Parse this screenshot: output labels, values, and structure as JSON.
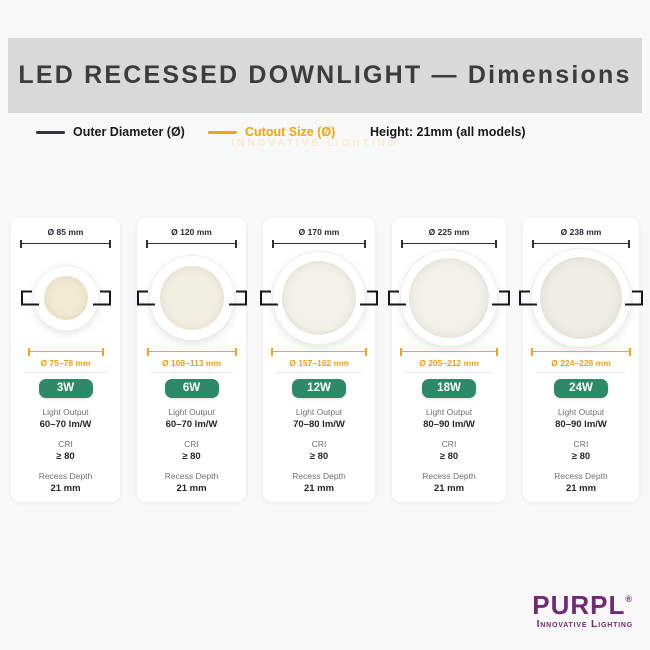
{
  "header": {
    "title": "LED RECESSED DOWNLIGHT — Dimensions"
  },
  "legend": {
    "outer_label": "Outer Diameter (Ø)",
    "cutout_label": "Cutout Size (Ø)",
    "height_note": "Height: 21mm (all models)"
  },
  "watermark": "INNOVATIVE LIGHTING",
  "spec_labels": {
    "light_output": "Light Output",
    "cri": "CRI",
    "recess_depth": "Recess Depth"
  },
  "products": [
    {
      "wattage": "3W",
      "outer_diameter": "Ø 85 mm",
      "cutout_size": "Ø 75–78 mm",
      "light_output": "60–70 lm/W",
      "cri": "≥ 80",
      "recess_depth": "21 mm"
    },
    {
      "wattage": "6W",
      "outer_diameter": "Ø 120 mm",
      "cutout_size": "Ø 108–113 mm",
      "light_output": "60–70 lm/W",
      "cri": "≥ 80",
      "recess_depth": "21 mm"
    },
    {
      "wattage": "12W",
      "outer_diameter": "Ø 170 mm",
      "cutout_size": "Ø 157–162 mm",
      "light_output": "70–80 lm/W",
      "cri": "≥ 80",
      "recess_depth": "21 mm"
    },
    {
      "wattage": "18W",
      "outer_diameter": "Ø 225 mm",
      "cutout_size": "Ø 205–212 mm",
      "light_output": "80–90 lm/W",
      "cri": "≥ 80",
      "recess_depth": "21 mm"
    },
    {
      "wattage": "24W",
      "outer_diameter": "Ø 238 mm",
      "cutout_size": "Ø 224–228 mm",
      "light_output": "80–90 lm/W",
      "cri": "≥ 80",
      "recess_depth": "21 mm"
    }
  ],
  "colors": {
    "outer_line": "#2f3038",
    "cutout_accent": "#f2a50c",
    "badge_green": "#2e8a66",
    "brand_purple": "#722b73",
    "header_band": "#d9d9d9",
    "page_background": "#f8f8f9"
  },
  "brand": {
    "name": "PURPL",
    "reg": "®",
    "tagline": "Innovative Lighting"
  }
}
